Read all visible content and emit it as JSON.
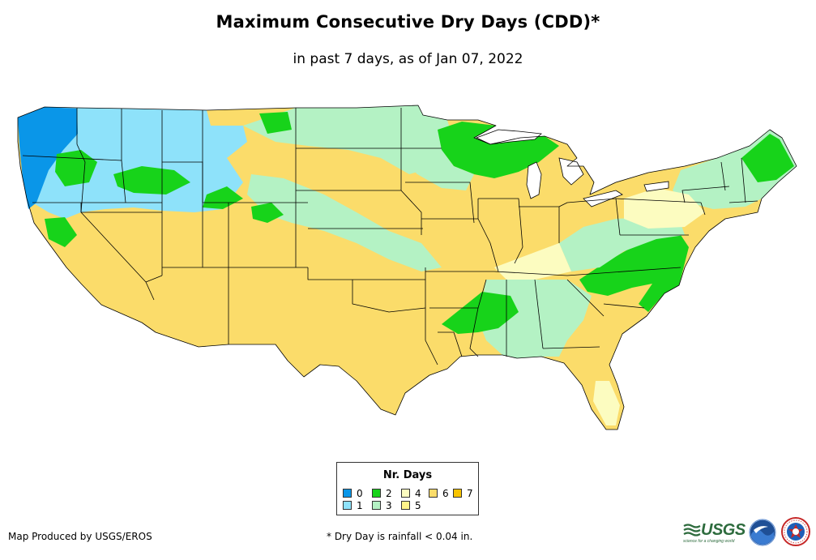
{
  "title": "Maximum Consecutive Dry Days (CDD)*",
  "subtitle": "in past 7 days, as of Jan 07, 2022",
  "legend": {
    "title": "Nr. Days",
    "items": [
      {
        "label": "0",
        "color": "#0a96e8"
      },
      {
        "label": "1",
        "color": "#8ee2fa"
      },
      {
        "label": "2",
        "color": "#17d31a"
      },
      {
        "label": "3",
        "color": "#b4f2c4"
      },
      {
        "label": "4",
        "color": "#fcfcc0"
      },
      {
        "label": "5",
        "color": "#fff48a"
      },
      {
        "label": "6",
        "color": "#fbdc6a"
      },
      {
        "label": "7",
        "color": "#f8c400"
      }
    ]
  },
  "footer": {
    "credit": "Map Produced by USGS/EROS",
    "footnote": "* Dry Day is rainfall < 0.04 in."
  },
  "logos": {
    "usgs": "USGS",
    "usgs_tagline": "science for a changing world",
    "noaa": "NOAA",
    "nws": "NWS"
  },
  "map_colors": {
    "base": "#fbdc6a",
    "light_green": "#b4f2c4",
    "green": "#17d31a",
    "light_blue": "#8ee2fa",
    "blue": "#0a96e8",
    "pale_yellow": "#fcfcc0",
    "outline": "#000000",
    "water": "#ffffff"
  }
}
